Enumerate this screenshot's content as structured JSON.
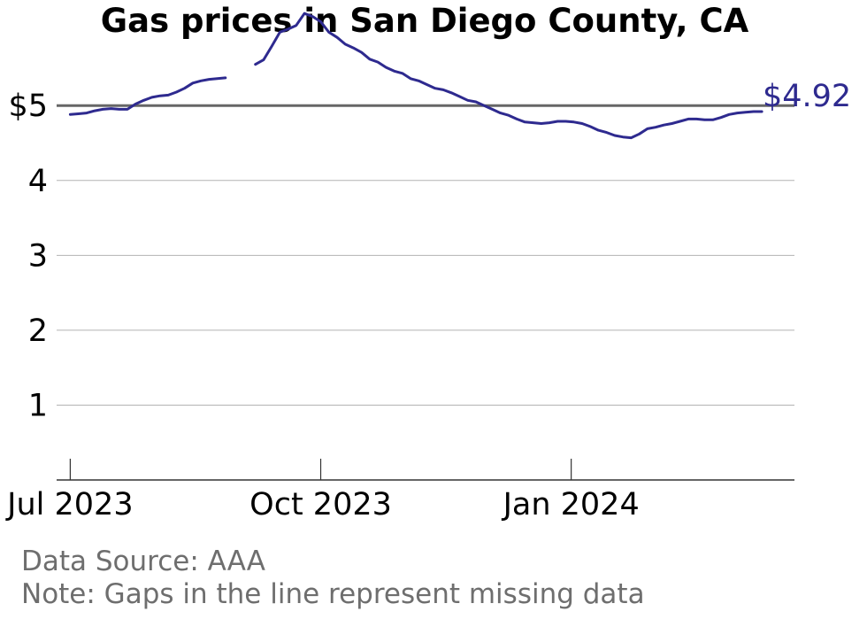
{
  "chart_data": {
    "type": "line",
    "title": "Gas prices in San Diego County, CA",
    "xlabel": "",
    "ylabel": "",
    "y_ticks": [
      {
        "value": 5,
        "label": "$5"
      },
      {
        "value": 4,
        "label": "4"
      },
      {
        "value": 3,
        "label": "3"
      },
      {
        "value": 2,
        "label": "2"
      },
      {
        "value": 1,
        "label": "1"
      }
    ],
    "ylim": [
      0,
      5.7
    ],
    "xlim": [
      "2023-06-26",
      "2024-03-23"
    ],
    "x_ticks": [
      {
        "date": "2023-07-01",
        "label": "Jul 2023"
      },
      {
        "date": "2023-10-01",
        "label": "Oct 2023"
      },
      {
        "date": "2024-01-01",
        "label": "Jan 2024"
      }
    ],
    "reference_line": {
      "value": 5,
      "color": "#666666"
    },
    "last_value_label": "$4.92",
    "grid": true,
    "series": [
      {
        "color": "#2e2a8f",
        "segments": [
          [
            [
              "2023-07-01",
              4.88
            ],
            [
              "2023-07-04",
              4.89
            ],
            [
              "2023-07-07",
              4.9
            ],
            [
              "2023-07-10",
              4.93
            ],
            [
              "2023-07-13",
              4.95
            ],
            [
              "2023-07-16",
              4.96
            ],
            [
              "2023-07-19",
              4.95
            ],
            [
              "2023-07-22",
              4.95
            ],
            [
              "2023-07-25",
              5.02
            ],
            [
              "2023-07-28",
              5.07
            ],
            [
              "2023-07-31",
              5.11
            ],
            [
              "2023-08-03",
              5.13
            ],
            [
              "2023-08-06",
              5.14
            ],
            [
              "2023-08-09",
              5.18
            ],
            [
              "2023-08-12",
              5.23
            ],
            [
              "2023-08-15",
              5.3
            ],
            [
              "2023-08-18",
              5.33
            ],
            [
              "2023-08-21",
              5.35
            ],
            [
              "2023-08-24",
              5.36
            ],
            [
              "2023-08-27",
              5.37
            ]
          ],
          [
            [
              "2023-09-07",
              5.55
            ],
            [
              "2023-09-10",
              5.61
            ],
            [
              "2023-09-13",
              5.79
            ],
            [
              "2023-09-16",
              5.98
            ],
            [
              "2023-09-19",
              6.02
            ],
            [
              "2023-09-22",
              6.07
            ],
            [
              "2023-09-25",
              6.23
            ],
            [
              "2023-09-28",
              6.19
            ],
            [
              "2023-10-01",
              6.12
            ],
            [
              "2023-10-04",
              5.98
            ],
            [
              "2023-10-07",
              5.91
            ],
            [
              "2023-10-10",
              5.82
            ],
            [
              "2023-10-13",
              5.77
            ],
            [
              "2023-10-16",
              5.71
            ],
            [
              "2023-10-19",
              5.62
            ],
            [
              "2023-10-22",
              5.58
            ],
            [
              "2023-10-25",
              5.51
            ],
            [
              "2023-10-28",
              5.46
            ],
            [
              "2023-10-31",
              5.43
            ],
            [
              "2023-11-03",
              5.36
            ],
            [
              "2023-11-06",
              5.33
            ],
            [
              "2023-11-09",
              5.28
            ],
            [
              "2023-11-12",
              5.23
            ],
            [
              "2023-11-15",
              5.21
            ],
            [
              "2023-11-18",
              5.17
            ],
            [
              "2023-11-21",
              5.12
            ],
            [
              "2023-11-24",
              5.07
            ],
            [
              "2023-11-27",
              5.05
            ],
            [
              "2023-11-30",
              5.0
            ],
            [
              "2023-12-03",
              4.95
            ],
            [
              "2023-12-06",
              4.9
            ],
            [
              "2023-12-09",
              4.87
            ],
            [
              "2023-12-12",
              4.82
            ],
            [
              "2023-12-15",
              4.78
            ],
            [
              "2023-12-18",
              4.77
            ],
            [
              "2023-12-21",
              4.76
            ],
            [
              "2023-12-24",
              4.77
            ],
            [
              "2023-12-27",
              4.79
            ],
            [
              "2023-12-30",
              4.79
            ],
            [
              "2024-01-02",
              4.78
            ],
            [
              "2024-01-05",
              4.76
            ],
            [
              "2024-01-08",
              4.72
            ],
            [
              "2024-01-11",
              4.67
            ],
            [
              "2024-01-14",
              4.64
            ],
            [
              "2024-01-17",
              4.6
            ],
            [
              "2024-01-20",
              4.58
            ],
            [
              "2024-01-23",
              4.57
            ],
            [
              "2024-01-26",
              4.62
            ],
            [
              "2024-01-29",
              4.69
            ],
            [
              "2024-02-01",
              4.71
            ],
            [
              "2024-02-04",
              4.74
            ],
            [
              "2024-02-07",
              4.76
            ],
            [
              "2024-02-10",
              4.79
            ],
            [
              "2024-02-13",
              4.82
            ],
            [
              "2024-02-16",
              4.82
            ],
            [
              "2024-02-19",
              4.81
            ],
            [
              "2024-02-22",
              4.81
            ],
            [
              "2024-02-25",
              4.84
            ],
            [
              "2024-02-28",
              4.88
            ],
            [
              "2024-03-02",
              4.9
            ],
            [
              "2024-03-05",
              4.91
            ],
            [
              "2024-03-08",
              4.92
            ],
            [
              "2024-03-11",
              4.92
            ]
          ]
        ]
      }
    ]
  },
  "notes": {
    "source": "Data Source: AAA",
    "gaps": "Note: Gaps in the line represent missing data"
  }
}
